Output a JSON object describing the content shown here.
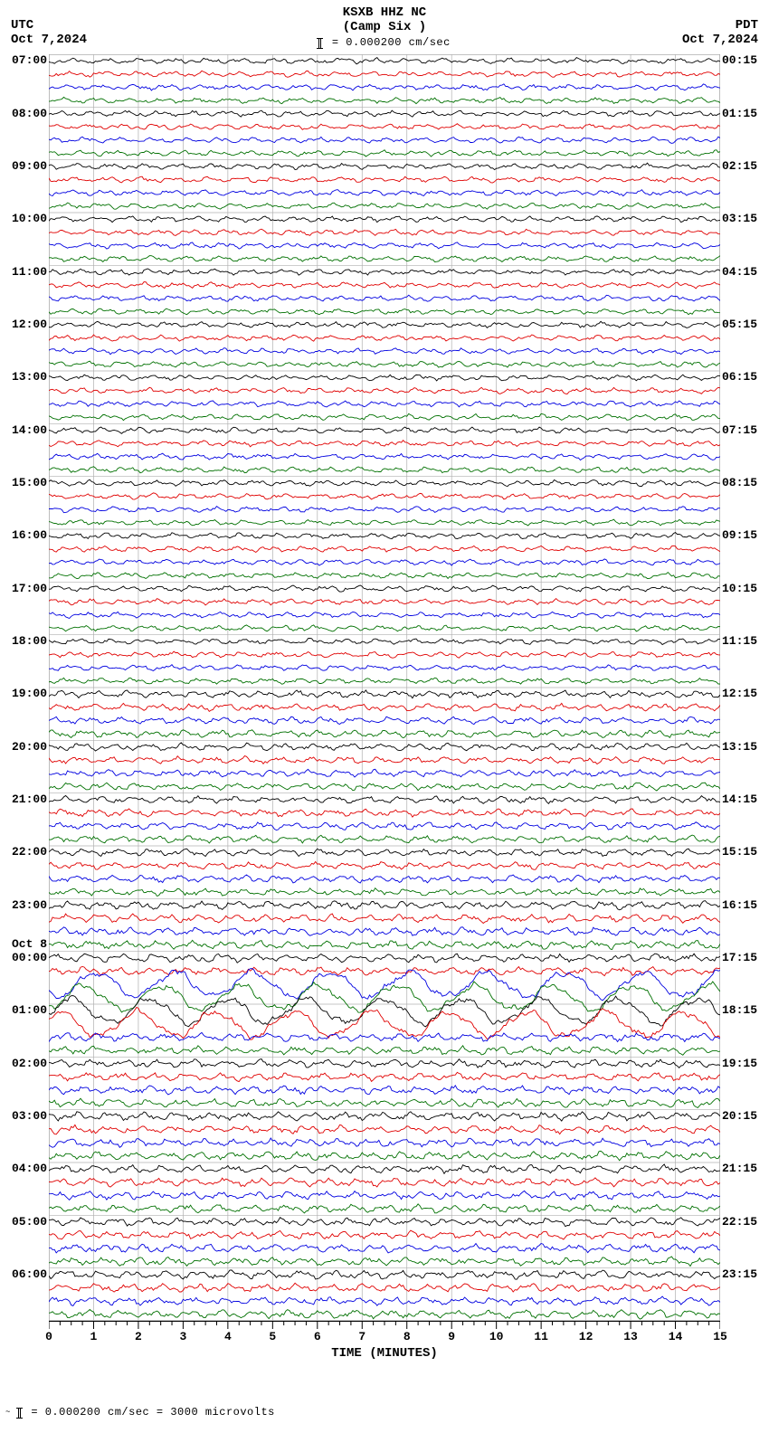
{
  "header": {
    "left_tz": "UTC",
    "left_date": "Oct 7,2024",
    "right_tz": "PDT",
    "right_date": "Oct 7,2024",
    "station": "KSXB HHZ NC",
    "location": "(Camp Six )",
    "scale_line": "= 0.000200 cm/sec"
  },
  "footer": {
    "line": "= 0.000200 cm/sec =   3000 microvolts"
  },
  "chart": {
    "background_color": "#ffffff",
    "grid_color": "#b0b0b0",
    "axis_color": "#000000",
    "trace_colors": [
      "#000000",
      "#e00000",
      "#0000e0",
      "#007000"
    ],
    "hours": 24,
    "lines_per_hour": 4,
    "x_minutes": 15,
    "x_major_step": 1,
    "date_break": {
      "after_hour": 17,
      "label": "Oct 8"
    },
    "utc_start_hour": 7,
    "pdt_start": {
      "h": 0,
      "m": 15
    },
    "amp_scale": 1.0,
    "event_hour": 18,
    "event_amp": 3.0,
    "left_labels": [
      "07:00",
      "08:00",
      "09:00",
      "10:00",
      "11:00",
      "12:00",
      "13:00",
      "14:00",
      "15:00",
      "16:00",
      "17:00",
      "18:00",
      "19:00",
      "20:00",
      "21:00",
      "22:00",
      "23:00",
      "00:00",
      "01:00",
      "02:00",
      "03:00",
      "04:00",
      "05:00",
      "06:00"
    ],
    "right_labels": [
      "00:15",
      "01:15",
      "02:15",
      "03:15",
      "04:15",
      "05:15",
      "06:15",
      "07:15",
      "08:15",
      "09:15",
      "10:15",
      "11:15",
      "12:15",
      "13:15",
      "14:15",
      "15:15",
      "16:15",
      "17:15",
      "18:15",
      "19:15",
      "20:15",
      "21:15",
      "22:15",
      "23:15"
    ],
    "x_ticks": [
      0,
      1,
      2,
      3,
      4,
      5,
      6,
      7,
      8,
      9,
      10,
      11,
      12,
      13,
      14,
      15
    ],
    "x_title": "TIME (MINUTES)"
  }
}
